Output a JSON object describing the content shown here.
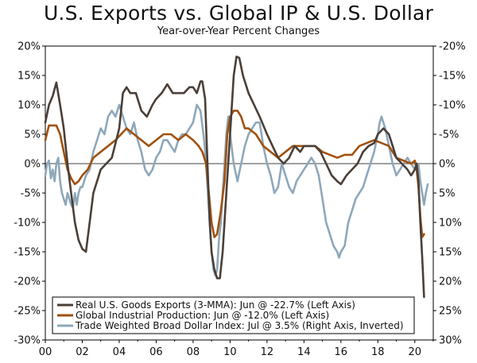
{
  "chart_data": {
    "type": "line",
    "title": "U.S. Exports vs. Global IP & U.S. Dollar",
    "subtitle": "Year-over-Year Percent Changes",
    "left_axis": {
      "range": [
        -30,
        20
      ],
      "ticks": [
        20,
        15,
        10,
        5,
        0,
        -5,
        -10,
        -15,
        -20,
        -25,
        -30
      ],
      "tick_labels": [
        "20%",
        "15%",
        "10%",
        "5%",
        "0%",
        "-5%",
        "-10%",
        "-15%",
        "-20%",
        "-25%",
        "-30%"
      ]
    },
    "right_axis": {
      "inverted": true,
      "range": [
        30,
        -20
      ],
      "tick_labels": [
        "-20%",
        "-15%",
        "-10%",
        "-5%",
        "0%",
        "5%",
        "10%",
        "15%",
        "20%",
        "25%",
        "30%"
      ]
    },
    "x_axis": {
      "range": [
        2000,
        2021
      ],
      "ticks": [
        2000,
        2002,
        2004,
        2006,
        2008,
        2010,
        2012,
        2014,
        2016,
        2018,
        2020
      ],
      "tick_labels": [
        "00",
        "02",
        "04",
        "06",
        "08",
        "10",
        "12",
        "14",
        "16",
        "18",
        "20"
      ]
    },
    "series": [
      {
        "name": "Real U.S. Goods Exports (3-MMA): Jun @ -22.7% (Left Axis)",
        "color": "#4a3f38",
        "axis": "left",
        "points": [
          [
            2000.0,
            7
          ],
          [
            2000.2,
            10
          ],
          [
            2000.4,
            11.5
          ],
          [
            2000.6,
            13.8
          ],
          [
            2000.8,
            10
          ],
          [
            2001.0,
            6
          ],
          [
            2001.2,
            0
          ],
          [
            2001.4,
            -5
          ],
          [
            2001.6,
            -10
          ],
          [
            2001.8,
            -13
          ],
          [
            2002.0,
            -14.5
          ],
          [
            2002.2,
            -15
          ],
          [
            2002.4,
            -10
          ],
          [
            2002.6,
            -5
          ],
          [
            2002.8,
            -3
          ],
          [
            2003.0,
            -1
          ],
          [
            2003.3,
            0
          ],
          [
            2003.6,
            1
          ],
          [
            2004.0,
            6
          ],
          [
            2004.2,
            12
          ],
          [
            2004.4,
            13
          ],
          [
            2004.6,
            12
          ],
          [
            2004.9,
            12
          ],
          [
            2005.2,
            9
          ],
          [
            2005.5,
            8
          ],
          [
            2005.8,
            10
          ],
          [
            2006.0,
            11
          ],
          [
            2006.3,
            12
          ],
          [
            2006.6,
            13.5
          ],
          [
            2006.9,
            12
          ],
          [
            2007.2,
            12
          ],
          [
            2007.5,
            12
          ],
          [
            2007.8,
            13
          ],
          [
            2008.0,
            13
          ],
          [
            2008.2,
            12
          ],
          [
            2008.4,
            14
          ],
          [
            2008.5,
            14
          ],
          [
            2008.65,
            11
          ],
          [
            2008.8,
            -2
          ],
          [
            2008.9,
            -10
          ],
          [
            2009.0,
            -15
          ],
          [
            2009.15,
            -18
          ],
          [
            2009.3,
            -19.5
          ],
          [
            2009.45,
            -19.5
          ],
          [
            2009.6,
            -15
          ],
          [
            2009.8,
            -5
          ],
          [
            2010.0,
            5
          ],
          [
            2010.2,
            15
          ],
          [
            2010.35,
            18.2
          ],
          [
            2010.5,
            18
          ],
          [
            2010.7,
            15
          ],
          [
            2011.0,
            12
          ],
          [
            2011.3,
            10
          ],
          [
            2011.6,
            8
          ],
          [
            2012.0,
            5
          ],
          [
            2012.3,
            3
          ],
          [
            2012.6,
            1
          ],
          [
            2012.9,
            0
          ],
          [
            2013.2,
            1
          ],
          [
            2013.5,
            3
          ],
          [
            2013.8,
            2
          ],
          [
            2014.0,
            3
          ],
          [
            2014.3,
            3
          ],
          [
            2014.6,
            3
          ],
          [
            2014.9,
            2
          ],
          [
            2015.2,
            0
          ],
          [
            2015.5,
            -2
          ],
          [
            2015.8,
            -3
          ],
          [
            2016.0,
            -3.5
          ],
          [
            2016.3,
            -2
          ],
          [
            2016.6,
            -1
          ],
          [
            2016.9,
            0
          ],
          [
            2017.2,
            2
          ],
          [
            2017.5,
            3
          ],
          [
            2017.8,
            3.5
          ],
          [
            2018.0,
            5
          ],
          [
            2018.3,
            6
          ],
          [
            2018.6,
            5
          ],
          [
            2018.8,
            3
          ],
          [
            2019.0,
            1
          ],
          [
            2019.3,
            0
          ],
          [
            2019.6,
            -1
          ],
          [
            2019.8,
            -2
          ],
          [
            2020.0,
            -1
          ],
          [
            2020.1,
            0
          ],
          [
            2020.2,
            -3
          ],
          [
            2020.3,
            -10
          ],
          [
            2020.4,
            -16
          ],
          [
            2020.5,
            -22.7
          ]
        ]
      },
      {
        "name": "Global Industrial Production: Jun @ -12.0% (Left Axis)",
        "color": "#a0510f",
        "axis": "left",
        "points": [
          [
            2000.0,
            4
          ],
          [
            2000.2,
            6.5
          ],
          [
            2000.4,
            6.5
          ],
          [
            2000.6,
            6.5
          ],
          [
            2000.8,
            5
          ],
          [
            2001.0,
            2
          ],
          [
            2001.2,
            -1
          ],
          [
            2001.4,
            -2.5
          ],
          [
            2001.6,
            -3.5
          ],
          [
            2001.8,
            -3
          ],
          [
            2002.0,
            -2
          ],
          [
            2002.3,
            -1
          ],
          [
            2002.6,
            1
          ],
          [
            2003.0,
            2
          ],
          [
            2003.4,
            3
          ],
          [
            2003.8,
            4
          ],
          [
            2004.1,
            5
          ],
          [
            2004.4,
            6
          ],
          [
            2004.8,
            5
          ],
          [
            2005.2,
            4
          ],
          [
            2005.6,
            3
          ],
          [
            2006.0,
            4
          ],
          [
            2006.4,
            5
          ],
          [
            2006.8,
            5
          ],
          [
            2007.2,
            4
          ],
          [
            2007.6,
            5
          ],
          [
            2008.0,
            4
          ],
          [
            2008.3,
            3
          ],
          [
            2008.5,
            2
          ],
          [
            2008.7,
            0
          ],
          [
            2008.85,
            -5
          ],
          [
            2009.0,
            -10
          ],
          [
            2009.15,
            -12.5
          ],
          [
            2009.3,
            -12
          ],
          [
            2009.5,
            -8
          ],
          [
            2009.7,
            -3
          ],
          [
            2009.85,
            5
          ],
          [
            2010.0,
            8
          ],
          [
            2010.2,
            9
          ],
          [
            2010.4,
            9
          ],
          [
            2010.6,
            8
          ],
          [
            2010.8,
            6
          ],
          [
            2011.0,
            6
          ],
          [
            2011.4,
            5
          ],
          [
            2011.8,
            3
          ],
          [
            2012.2,
            2
          ],
          [
            2012.6,
            1
          ],
          [
            2013.0,
            2
          ],
          [
            2013.4,
            3
          ],
          [
            2013.8,
            3
          ],
          [
            2014.2,
            3
          ],
          [
            2014.6,
            3
          ],
          [
            2015.0,
            2
          ],
          [
            2015.4,
            1.5
          ],
          [
            2015.8,
            1
          ],
          [
            2016.2,
            1.5
          ],
          [
            2016.6,
            1.5
          ],
          [
            2017.0,
            3
          ],
          [
            2017.4,
            3.5
          ],
          [
            2017.8,
            4
          ],
          [
            2018.2,
            3.5
          ],
          [
            2018.6,
            3
          ],
          [
            2019.0,
            1
          ],
          [
            2019.4,
            0.5
          ],
          [
            2019.8,
            0
          ],
          [
            2020.0,
            0.5
          ],
          [
            2020.1,
            -1
          ],
          [
            2020.2,
            -4
          ],
          [
            2020.3,
            -9
          ],
          [
            2020.4,
            -12.5
          ],
          [
            2020.5,
            -12
          ]
        ]
      },
      {
        "name": "Trade Weighted Broad Dollar Index: Jul @ 3.5% (Right Axis, Inverted)",
        "color": "#8ea8ba",
        "axis": "right_inverted",
        "points": [
          [
            2000.0,
            2
          ],
          [
            2000.1,
            0
          ],
          [
            2000.2,
            -0.5
          ],
          [
            2000.3,
            2.5
          ],
          [
            2000.4,
            1
          ],
          [
            2000.5,
            3
          ],
          [
            2000.6,
            0
          ],
          [
            2000.7,
            -1
          ],
          [
            2000.8,
            3
          ],
          [
            2000.9,
            5
          ],
          [
            2001.0,
            6
          ],
          [
            2001.1,
            7
          ],
          [
            2001.2,
            5
          ],
          [
            2001.3,
            6
          ],
          [
            2001.4,
            7
          ],
          [
            2001.5,
            7.5
          ],
          [
            2001.6,
            5
          ],
          [
            2001.7,
            7
          ],
          [
            2001.8,
            5
          ],
          [
            2001.9,
            4
          ],
          [
            2002.0,
            4
          ],
          [
            2002.1,
            3
          ],
          [
            2002.2,
            2
          ],
          [
            2002.4,
            1
          ],
          [
            2002.6,
            -2
          ],
          [
            2002.8,
            -4
          ],
          [
            2003.0,
            -6
          ],
          [
            2003.2,
            -5
          ],
          [
            2003.4,
            -8
          ],
          [
            2003.6,
            -9
          ],
          [
            2003.8,
            -8
          ],
          [
            2004.0,
            -10
          ],
          [
            2004.2,
            -8
          ],
          [
            2004.4,
            -6
          ],
          [
            2004.6,
            -5
          ],
          [
            2004.8,
            -7
          ],
          [
            2005.0,
            -4
          ],
          [
            2005.2,
            -2
          ],
          [
            2005.4,
            1
          ],
          [
            2005.6,
            2
          ],
          [
            2005.8,
            1
          ],
          [
            2006.0,
            -1
          ],
          [
            2006.2,
            -2
          ],
          [
            2006.4,
            -4
          ],
          [
            2006.6,
            -4
          ],
          [
            2006.8,
            -3
          ],
          [
            2007.0,
            -2
          ],
          [
            2007.2,
            -4
          ],
          [
            2007.4,
            -5
          ],
          [
            2007.6,
            -5
          ],
          [
            2007.8,
            -6
          ],
          [
            2008.0,
            -7
          ],
          [
            2008.2,
            -10
          ],
          [
            2008.4,
            -9
          ],
          [
            2008.6,
            -4
          ],
          [
            2008.7,
            0
          ],
          [
            2008.8,
            5
          ],
          [
            2008.9,
            10
          ],
          [
            2009.0,
            15
          ],
          [
            2009.1,
            18
          ],
          [
            2009.2,
            19
          ],
          [
            2009.3,
            18
          ],
          [
            2009.4,
            13
          ],
          [
            2009.5,
            10
          ],
          [
            2009.6,
            5
          ],
          [
            2009.7,
            0
          ],
          [
            2009.8,
            -5
          ],
          [
            2009.9,
            -8
          ],
          [
            2010.0,
            -5
          ],
          [
            2010.2,
            0
          ],
          [
            2010.4,
            3
          ],
          [
            2010.6,
            0
          ],
          [
            2010.8,
            -3
          ],
          [
            2011.0,
            -5
          ],
          [
            2011.2,
            -6
          ],
          [
            2011.4,
            -7
          ],
          [
            2011.6,
            -7
          ],
          [
            2011.8,
            -3
          ],
          [
            2012.0,
            0
          ],
          [
            2012.2,
            2
          ],
          [
            2012.4,
            5
          ],
          [
            2012.6,
            4
          ],
          [
            2012.8,
            0
          ],
          [
            2013.0,
            2
          ],
          [
            2013.2,
            4
          ],
          [
            2013.4,
            5
          ],
          [
            2013.6,
            3
          ],
          [
            2013.8,
            2
          ],
          [
            2014.0,
            1
          ],
          [
            2014.2,
            0
          ],
          [
            2014.4,
            -1
          ],
          [
            2014.6,
            0
          ],
          [
            2014.8,
            2
          ],
          [
            2015.0,
            6
          ],
          [
            2015.2,
            10
          ],
          [
            2015.4,
            12
          ],
          [
            2015.5,
            13
          ],
          [
            2015.6,
            14
          ],
          [
            2015.8,
            15
          ],
          [
            2015.9,
            16
          ],
          [
            2016.0,
            15
          ],
          [
            2016.2,
            14
          ],
          [
            2016.4,
            10
          ],
          [
            2016.6,
            8
          ],
          [
            2016.8,
            6
          ],
          [
            2017.0,
            5
          ],
          [
            2017.2,
            4
          ],
          [
            2017.4,
            2
          ],
          [
            2017.6,
            0
          ],
          [
            2017.8,
            -2
          ],
          [
            2018.0,
            -5
          ],
          [
            2018.1,
            -7
          ],
          [
            2018.2,
            -8
          ],
          [
            2018.4,
            -6
          ],
          [
            2018.6,
            -3
          ],
          [
            2018.8,
            0
          ],
          [
            2019.0,
            2
          ],
          [
            2019.2,
            1
          ],
          [
            2019.4,
            0
          ],
          [
            2019.6,
            -1
          ],
          [
            2019.8,
            0
          ],
          [
            2020.0,
            1
          ],
          [
            2020.2,
            0
          ],
          [
            2020.3,
            3
          ],
          [
            2020.4,
            5
          ],
          [
            2020.5,
            7
          ],
          [
            2020.6,
            5
          ],
          [
            2020.7,
            3.5
          ]
        ]
      }
    ]
  }
}
